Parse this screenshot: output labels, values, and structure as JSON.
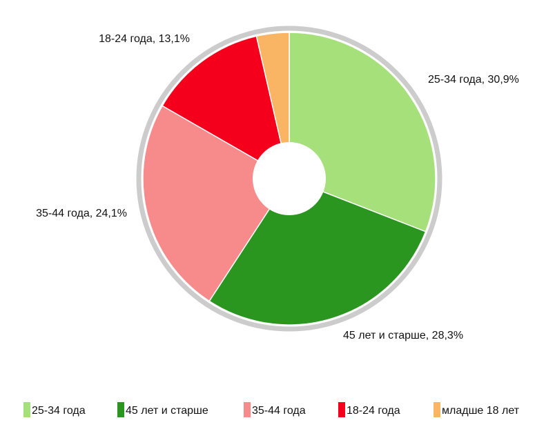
{
  "chart_data": {
    "type": "pie",
    "title": "",
    "donut": true,
    "legend_position": "bottom",
    "slices": [
      {
        "category": "25-34 года",
        "value": 30.9,
        "label": "25-34 года, 30,9%",
        "color": "#a6e07a"
      },
      {
        "category": "45 лет и старше",
        "value": 28.3,
        "label": "45 лет и старше, 28,3%",
        "color": "#2a961f"
      },
      {
        "category": "35-44 года",
        "value": 24.1,
        "label": "35-44 года, 24,1%",
        "color": "#f78a8a"
      },
      {
        "category": "18-24 года",
        "value": 13.1,
        "label": "18-24 года, 13,1%",
        "color": "#f5001c"
      },
      {
        "category": "младше 18 лет",
        "value": 3.6,
        "label": "",
        "color": "#f9b464"
      }
    ]
  }
}
